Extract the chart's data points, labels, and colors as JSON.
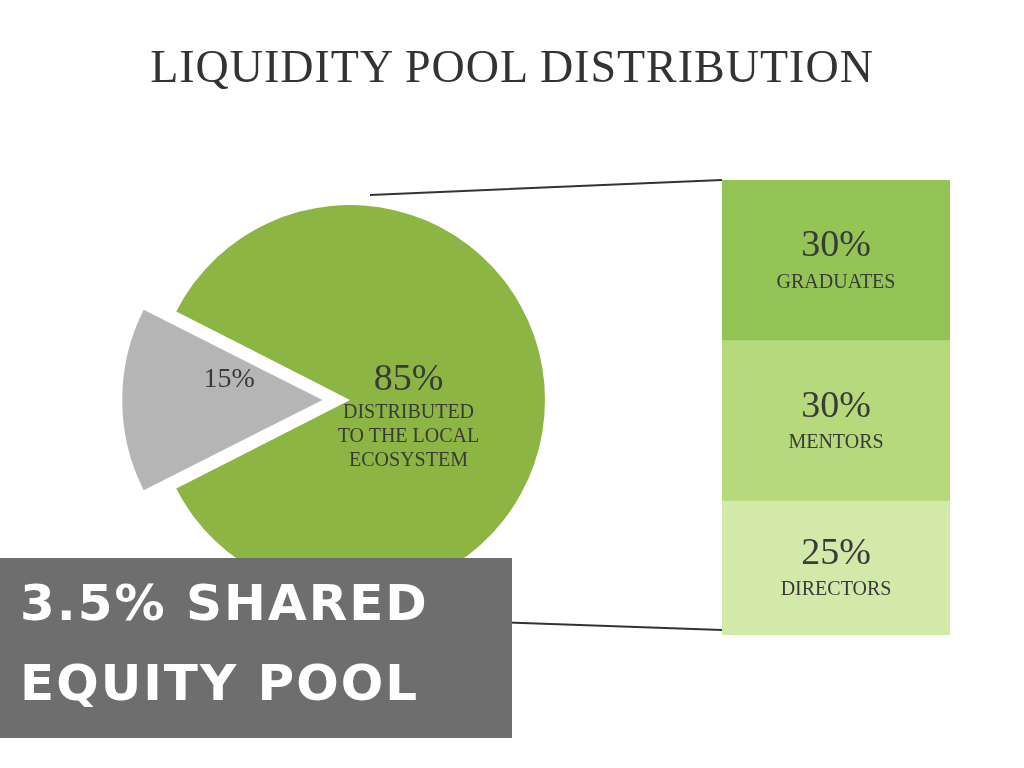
{
  "chart_data": [
    {
      "type": "pie",
      "title": "LIQUIDITY POOL DISTRIBUTION",
      "categories": [
        null,
        "DISTRIBUTED TO THE LOCAL ECOSYSTEM"
      ],
      "values": [
        15,
        85
      ],
      "value_labels": [
        "15%",
        "85%"
      ],
      "colors": [
        "#b5b5b5",
        "#8db543"
      ],
      "annotations": [
        "3.5% SHARED EQUITY POOL"
      ]
    },
    {
      "type": "bar",
      "stacked": true,
      "categories": [
        null
      ],
      "series": [
        {
          "name": "DIRECTORS",
          "color": "#d3e9a9",
          "values": [
            25
          ],
          "value_labels": [
            "25%"
          ]
        },
        {
          "name": "MENTORS",
          "color": "#b6da7b",
          "values": [
            30
          ],
          "value_labels": [
            "30%"
          ]
        },
        {
          "name": "GRADUATES",
          "color": "#93c455",
          "values": [
            30
          ],
          "value_labels": [
            "30%"
          ]
        }
      ]
    }
  ]
}
